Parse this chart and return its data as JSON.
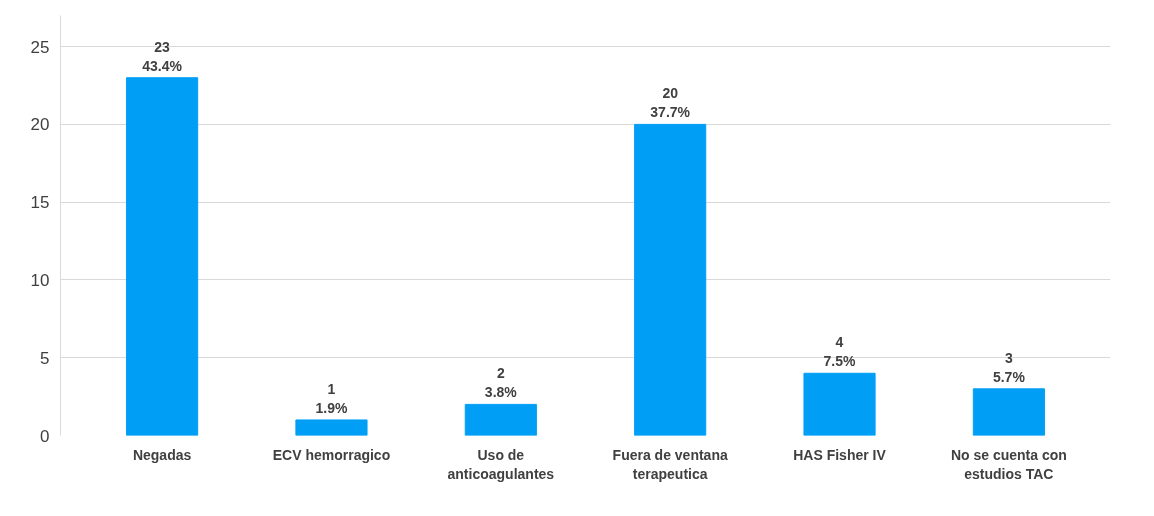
{
  "chart_data": {
    "type": "bar",
    "categories": [
      "Negadas",
      "ECV hemorragico",
      "Uso de\nanticoagulantes",
      "Fuera de ventana\nterapeutica",
      "HAS Fisher IV",
      "No se cuenta con\nestudios TAC"
    ],
    "values": [
      23,
      1,
      2,
      20,
      4,
      3
    ],
    "value_labels": [
      "23\n43.4%",
      "1\n1.9%",
      "2\n3.8%",
      "20\n37.7%",
      "4\n7.5%",
      "3\n5.7%"
    ],
    "color": "#009ff5",
    "ylim": [
      0,
      27
    ],
    "yticks": [
      0,
      5,
      10,
      15,
      20,
      25
    ],
    "grid": "y"
  }
}
